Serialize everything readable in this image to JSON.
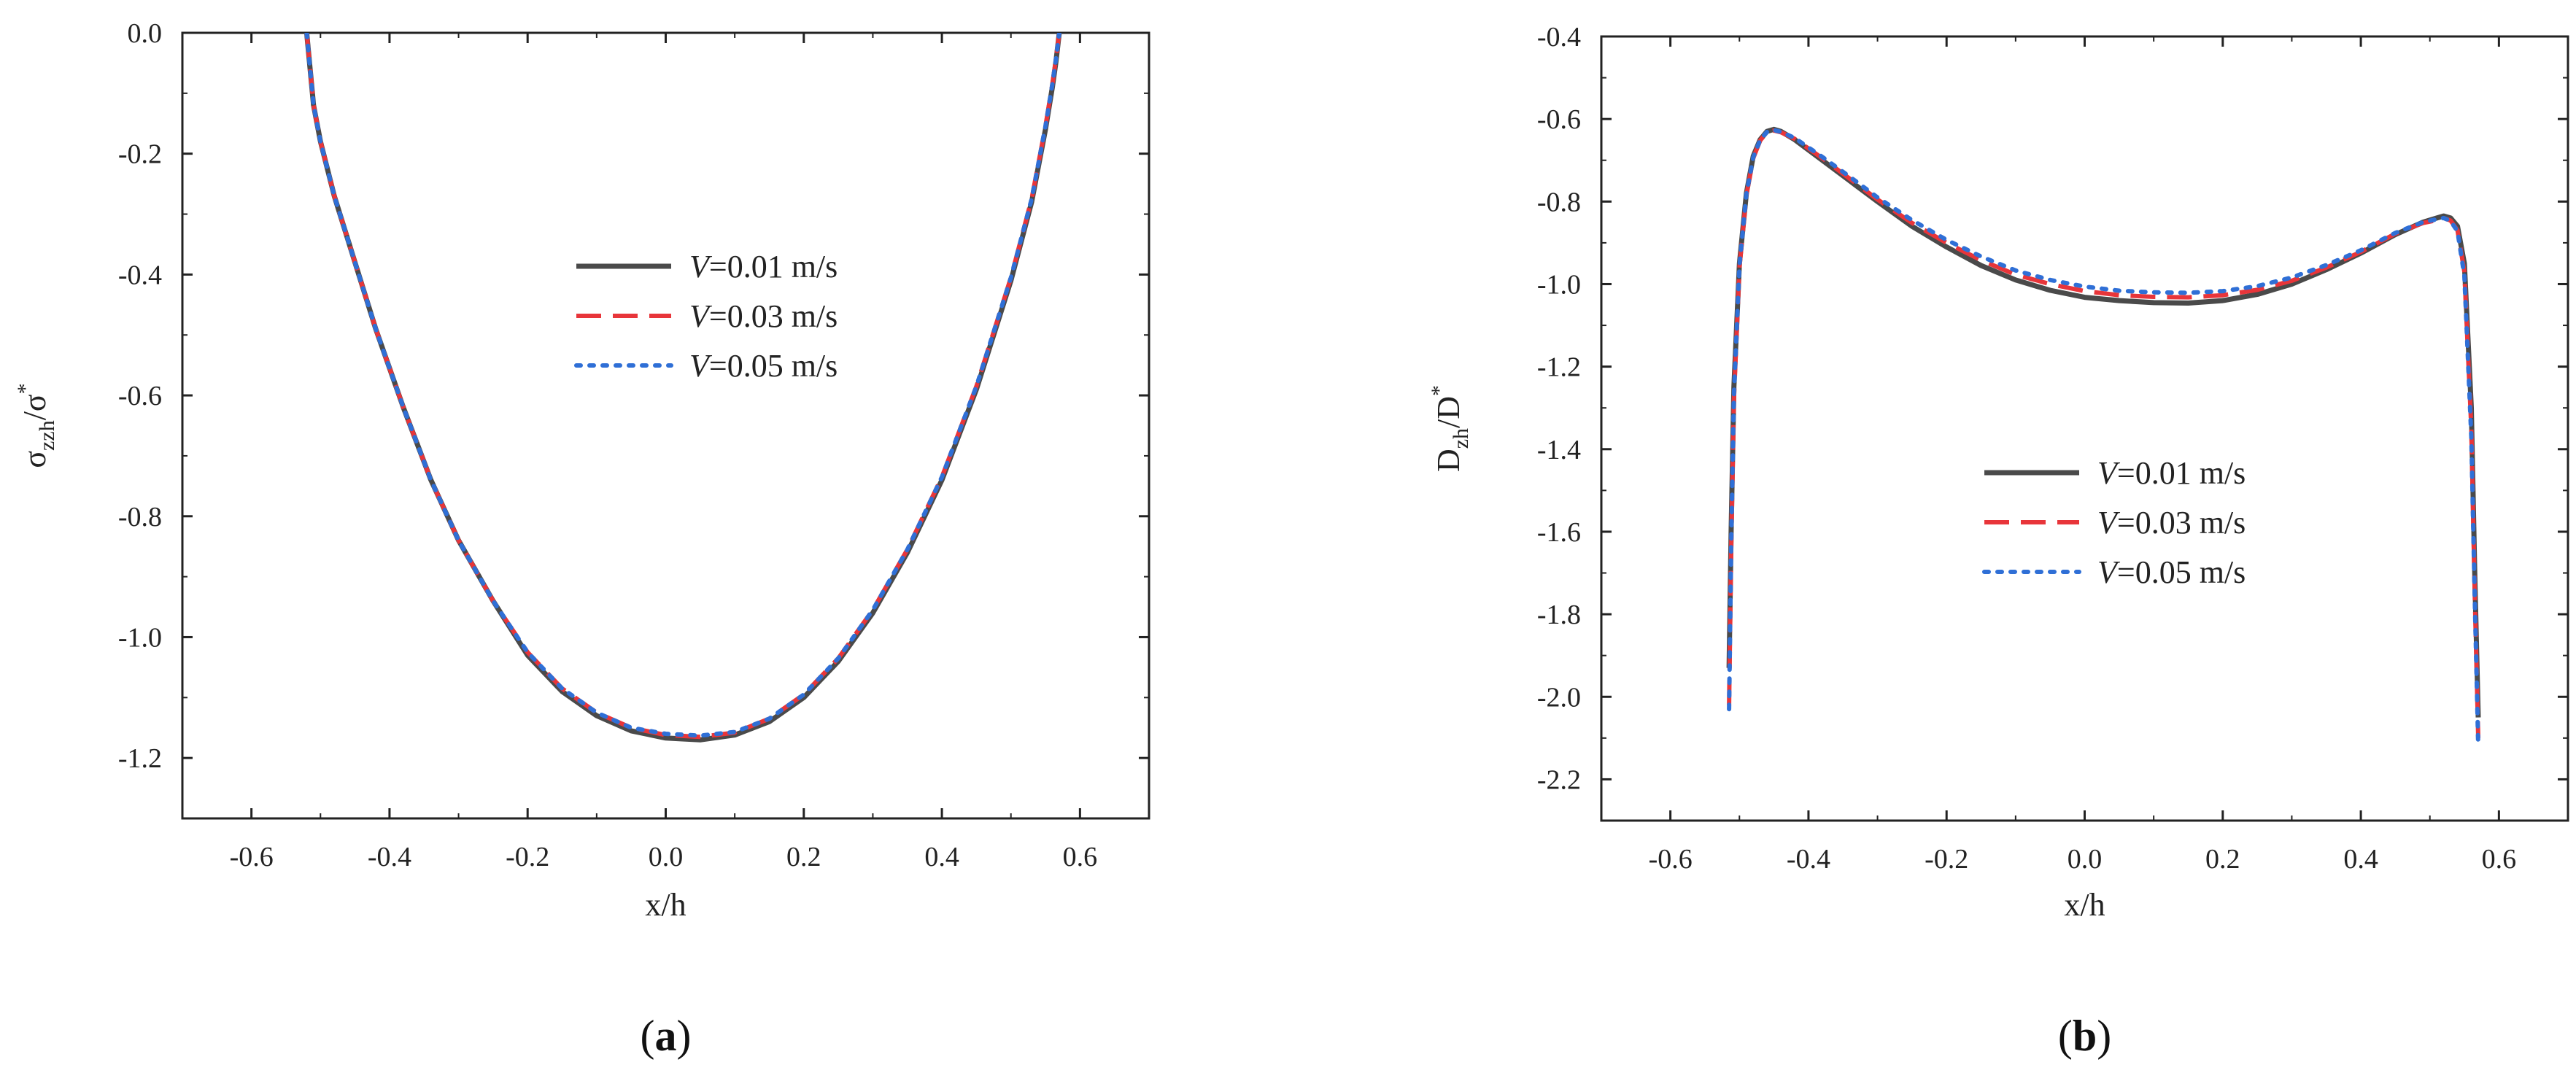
{
  "chart_data": [
    {
      "type": "line",
      "panel_label": "(a)",
      "xlabel": "x/h",
      "ylabel": {
        "base": "σ",
        "sub": "zzh",
        "mid": "/σ",
        "sup": "*"
      },
      "xlim": [
        -0.7,
        0.7
      ],
      "ylim": [
        -1.3,
        0.0
      ],
      "xticks": [
        -0.6,
        -0.4,
        -0.2,
        0.0,
        0.2,
        0.4,
        0.6
      ],
      "yticks": [
        0.0,
        -0.2,
        -0.4,
        -0.6,
        -0.8,
        -1.0,
        -1.2
      ],
      "xtick_labels": [
        "-0.6",
        "-0.4",
        "-0.2",
        "0.0",
        "0.2",
        "0.4",
        "0.6"
      ],
      "ytick_labels": [
        "0.0",
        "-0.2",
        "-0.4",
        "-0.6",
        "-0.8",
        "-1.0",
        "-1.2"
      ],
      "legend_position": "center-right",
      "series": [
        {
          "name": "V=0.01 m/s",
          "legend_italic": "V",
          "legend_rest": "=0.01 m/s",
          "color": "#4a4a4a",
          "style": "solid",
          "x": [
            -0.52,
            -0.515,
            -0.51,
            -0.5,
            -0.48,
            -0.45,
            -0.42,
            -0.38,
            -0.34,
            -0.3,
            -0.25,
            -0.2,
            -0.15,
            -0.1,
            -0.05,
            0.0,
            0.05,
            0.1,
            0.15,
            0.2,
            0.25,
            0.3,
            0.35,
            0.4,
            0.45,
            0.5,
            0.53,
            0.55,
            0.56,
            0.565,
            0.57
          ],
          "y": [
            0.0,
            -0.06,
            -0.12,
            -0.18,
            -0.27,
            -0.38,
            -0.49,
            -0.62,
            -0.74,
            -0.84,
            -0.94,
            -1.03,
            -1.09,
            -1.13,
            -1.155,
            -1.167,
            -1.17,
            -1.162,
            -1.14,
            -1.1,
            -1.04,
            -0.96,
            -0.86,
            -0.74,
            -0.59,
            -0.41,
            -0.28,
            -0.16,
            -0.09,
            -0.05,
            0.0
          ]
        },
        {
          "name": "V=0.03 m/s",
          "legend_italic": "V",
          "legend_rest": "=0.03 m/s",
          "color": "#e8353a",
          "style": "dashed",
          "x": [
            -0.52,
            -0.515,
            -0.51,
            -0.5,
            -0.48,
            -0.45,
            -0.42,
            -0.38,
            -0.34,
            -0.3,
            -0.25,
            -0.2,
            -0.15,
            -0.1,
            -0.05,
            0.0,
            0.05,
            0.1,
            0.15,
            0.2,
            0.25,
            0.3,
            0.35,
            0.4,
            0.45,
            0.5,
            0.53,
            0.55,
            0.56,
            0.565,
            0.57
          ],
          "y": [
            0.0,
            -0.06,
            -0.12,
            -0.18,
            -0.27,
            -0.38,
            -0.49,
            -0.62,
            -0.74,
            -0.84,
            -0.94,
            -1.025,
            -1.085,
            -1.125,
            -1.15,
            -1.162,
            -1.165,
            -1.158,
            -1.135,
            -1.095,
            -1.035,
            -0.955,
            -0.855,
            -0.735,
            -0.585,
            -0.405,
            -0.275,
            -0.155,
            -0.085,
            -0.045,
            0.0
          ]
        },
        {
          "name": "V=0.05 m/s",
          "legend_italic": "V",
          "legend_rest": "=0.05 m/s",
          "color": "#2f6fd6",
          "style": "dotted",
          "x": [
            -0.52,
            -0.515,
            -0.51,
            -0.5,
            -0.48,
            -0.45,
            -0.42,
            -0.38,
            -0.34,
            -0.3,
            -0.25,
            -0.2,
            -0.15,
            -0.1,
            -0.05,
            0.0,
            0.05,
            0.1,
            0.15,
            0.2,
            0.25,
            0.3,
            0.35,
            0.4,
            0.45,
            0.5,
            0.53,
            0.55,
            0.56,
            0.565,
            0.57
          ],
          "y": [
            0.0,
            -0.06,
            -0.12,
            -0.18,
            -0.27,
            -0.38,
            -0.49,
            -0.62,
            -0.74,
            -0.84,
            -0.94,
            -1.025,
            -1.085,
            -1.125,
            -1.15,
            -1.16,
            -1.163,
            -1.157,
            -1.135,
            -1.095,
            -1.035,
            -0.955,
            -0.855,
            -0.735,
            -0.585,
            -0.405,
            -0.275,
            -0.155,
            -0.085,
            -0.045,
            0.0
          ]
        }
      ]
    },
    {
      "type": "line",
      "panel_label": "(b)",
      "xlabel": "x/h",
      "ylabel": {
        "base": "D",
        "sub": "zh",
        "mid": "/D",
        "sup": "*"
      },
      "xlim": [
        -0.7,
        0.7
      ],
      "ylim": [
        -2.3,
        -0.4
      ],
      "xticks": [
        -0.6,
        -0.4,
        -0.2,
        0.0,
        0.2,
        0.4,
        0.6
      ],
      "yticks": [
        -0.4,
        -0.6,
        -0.8,
        -1.0,
        -1.2,
        -1.4,
        -1.6,
        -1.8,
        -2.0,
        -2.2
      ],
      "xtick_labels": [
        "-0.6",
        "-0.4",
        "-0.2",
        "0.0",
        "0.2",
        "0.4",
        "0.6"
      ],
      "ytick_labels": [
        "-0.4",
        "-0.6",
        "-0.8",
        "-1.0",
        "-1.2",
        "-1.4",
        "-1.6",
        "-1.8",
        "-2.0",
        "-2.2"
      ],
      "legend_position": "center",
      "series": [
        {
          "name": "V=0.01 m/s",
          "legend_italic": "V",
          "legend_rest": "=0.01 m/s",
          "color": "#4a4a4a",
          "style": "solid",
          "x": [
            -0.515,
            -0.512,
            -0.508,
            -0.5,
            -0.49,
            -0.48,
            -0.47,
            -0.46,
            -0.45,
            -0.44,
            -0.42,
            -0.38,
            -0.34,
            -0.3,
            -0.25,
            -0.2,
            -0.15,
            -0.1,
            -0.05,
            0.0,
            0.05,
            0.1,
            0.15,
            0.2,
            0.25,
            0.3,
            0.35,
            0.4,
            0.45,
            0.49,
            0.51,
            0.52,
            0.53,
            0.54,
            0.55,
            0.56,
            0.565,
            0.57
          ],
          "y": [
            -1.93,
            -1.6,
            -1.25,
            -0.95,
            -0.78,
            -0.69,
            -0.65,
            -0.63,
            -0.625,
            -0.63,
            -0.65,
            -0.7,
            -0.75,
            -0.8,
            -0.86,
            -0.91,
            -0.955,
            -0.99,
            -1.015,
            -1.032,
            -1.04,
            -1.045,
            -1.046,
            -1.04,
            -1.025,
            -1.0,
            -0.965,
            -0.925,
            -0.88,
            -0.85,
            -0.84,
            -0.835,
            -0.84,
            -0.86,
            -0.95,
            -1.3,
            -1.7,
            -2.05
          ]
        },
        {
          "name": "V=0.03 m/s",
          "legend_italic": "V",
          "legend_rest": "=0.03 m/s",
          "color": "#e8353a",
          "style": "dashed",
          "x": [
            -0.515,
            -0.512,
            -0.508,
            -0.5,
            -0.49,
            -0.48,
            -0.47,
            -0.46,
            -0.45,
            -0.44,
            -0.42,
            -0.38,
            -0.34,
            -0.3,
            -0.25,
            -0.2,
            -0.15,
            -0.1,
            -0.05,
            0.0,
            0.05,
            0.1,
            0.15,
            0.2,
            0.25,
            0.3,
            0.35,
            0.4,
            0.45,
            0.49,
            0.51,
            0.52,
            0.53,
            0.54,
            0.55,
            0.56,
            0.565,
            0.57
          ],
          "y": [
            -2.02,
            -1.65,
            -1.28,
            -0.96,
            -0.785,
            -0.695,
            -0.652,
            -0.632,
            -0.628,
            -0.632,
            -0.648,
            -0.695,
            -0.745,
            -0.795,
            -0.852,
            -0.9,
            -0.942,
            -0.977,
            -1.0,
            -1.017,
            -1.027,
            -1.031,
            -1.032,
            -1.027,
            -1.014,
            -0.992,
            -0.96,
            -0.922,
            -0.878,
            -0.852,
            -0.845,
            -0.84,
            -0.846,
            -0.87,
            -0.97,
            -1.35,
            -1.75,
            -2.1
          ]
        },
        {
          "name": "V=0.05 m/s",
          "legend_italic": "V",
          "legend_rest": "=0.05 m/s",
          "color": "#2f6fd6",
          "style": "dotted",
          "x": [
            -0.515,
            -0.512,
            -0.508,
            -0.5,
            -0.49,
            -0.48,
            -0.47,
            -0.46,
            -0.45,
            -0.44,
            -0.42,
            -0.38,
            -0.34,
            -0.3,
            -0.25,
            -0.2,
            -0.15,
            -0.1,
            -0.05,
            0.0,
            0.05,
            0.1,
            0.15,
            0.2,
            0.25,
            0.3,
            0.35,
            0.4,
            0.45,
            0.49,
            0.51,
            0.52,
            0.53,
            0.54,
            0.55,
            0.56,
            0.565,
            0.57
          ],
          "y": [
            -2.03,
            -1.64,
            -1.27,
            -0.955,
            -0.782,
            -0.693,
            -0.651,
            -0.631,
            -0.627,
            -0.631,
            -0.646,
            -0.692,
            -0.74,
            -0.79,
            -0.845,
            -0.893,
            -0.933,
            -0.967,
            -0.99,
            -1.006,
            -1.016,
            -1.02,
            -1.021,
            -1.017,
            -1.005,
            -0.984,
            -0.954,
            -0.918,
            -0.876,
            -0.85,
            -0.843,
            -0.84,
            -0.847,
            -0.872,
            -0.98,
            -1.37,
            -1.76,
            -2.12
          ]
        }
      ]
    }
  ]
}
